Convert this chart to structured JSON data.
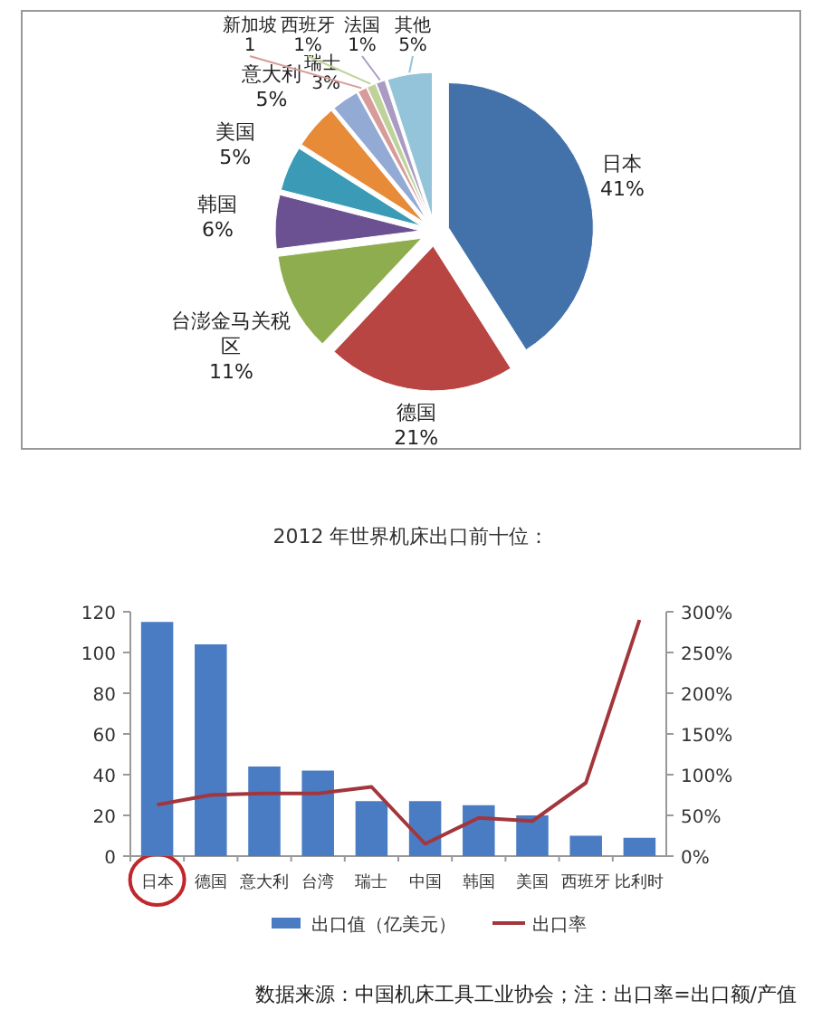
{
  "chart_data": [
    {
      "type": "pie",
      "categories": [
        "日本",
        "德国",
        "台澎金马关税区",
        "韩国",
        "美国",
        "意大利",
        "瑞士",
        "新加坡",
        "西班牙",
        "法国",
        "其他"
      ],
      "values": [
        41,
        21,
        11,
        6,
        5,
        5,
        3,
        1,
        1,
        1,
        5
      ],
      "colors": [
        "#4371a9",
        "#b84542",
        "#8dad4e",
        "#6b5192",
        "#3b9bb6",
        "#e88b38",
        "#93aad5",
        "#d79b99",
        "#bfd29a",
        "#a99bc3",
        "#93c4d9"
      ],
      "value_labels": [
        "41%",
        "21%",
        "11%",
        "6%",
        "5%",
        "5%",
        "3%",
        "1",
        "1%",
        "1%",
        "5%"
      ]
    },
    {
      "type": "bar",
      "title": "2012 年世界机床出口前十位：",
      "categories": [
        "日本",
        "德国",
        "意大利",
        "台湾",
        "瑞士",
        "中国",
        "韩国",
        "美国",
        "西班牙",
        "比利时"
      ],
      "series": [
        {
          "name": "出口值（亿美元）",
          "type": "bar",
          "color": "#4a7cc4",
          "values": [
            115,
            104,
            44,
            42,
            27,
            27,
            25,
            20,
            10,
            9
          ]
        },
        {
          "name": "出口率",
          "type": "line",
          "axis": "y2",
          "color": "#a3363d",
          "values": [
            63,
            75,
            77,
            77,
            85,
            15,
            47,
            43,
            90,
            290
          ]
        }
      ],
      "ylim": [
        0,
        120
      ],
      "yticks": [
        0,
        20,
        40,
        60,
        80,
        100,
        120
      ],
      "y2lim": [
        0,
        300
      ],
      "y2ticks": [
        {
          "value": 0,
          "label": "0%"
        },
        {
          "value": 50,
          "label": "50%"
        },
        {
          "value": 100,
          "label": "100%"
        },
        {
          "value": 150,
          "label": "150%"
        },
        {
          "value": 200,
          "label": "200%"
        },
        {
          "value": 250,
          "label": "250%"
        },
        {
          "value": 300,
          "label": "300%"
        }
      ],
      "legend": "bottom",
      "marker": "none",
      "line_style": "solid",
      "annotations": [
        "数据来源：中国机床工具工业协会；注：出口率=出口额/产值"
      ]
    }
  ]
}
